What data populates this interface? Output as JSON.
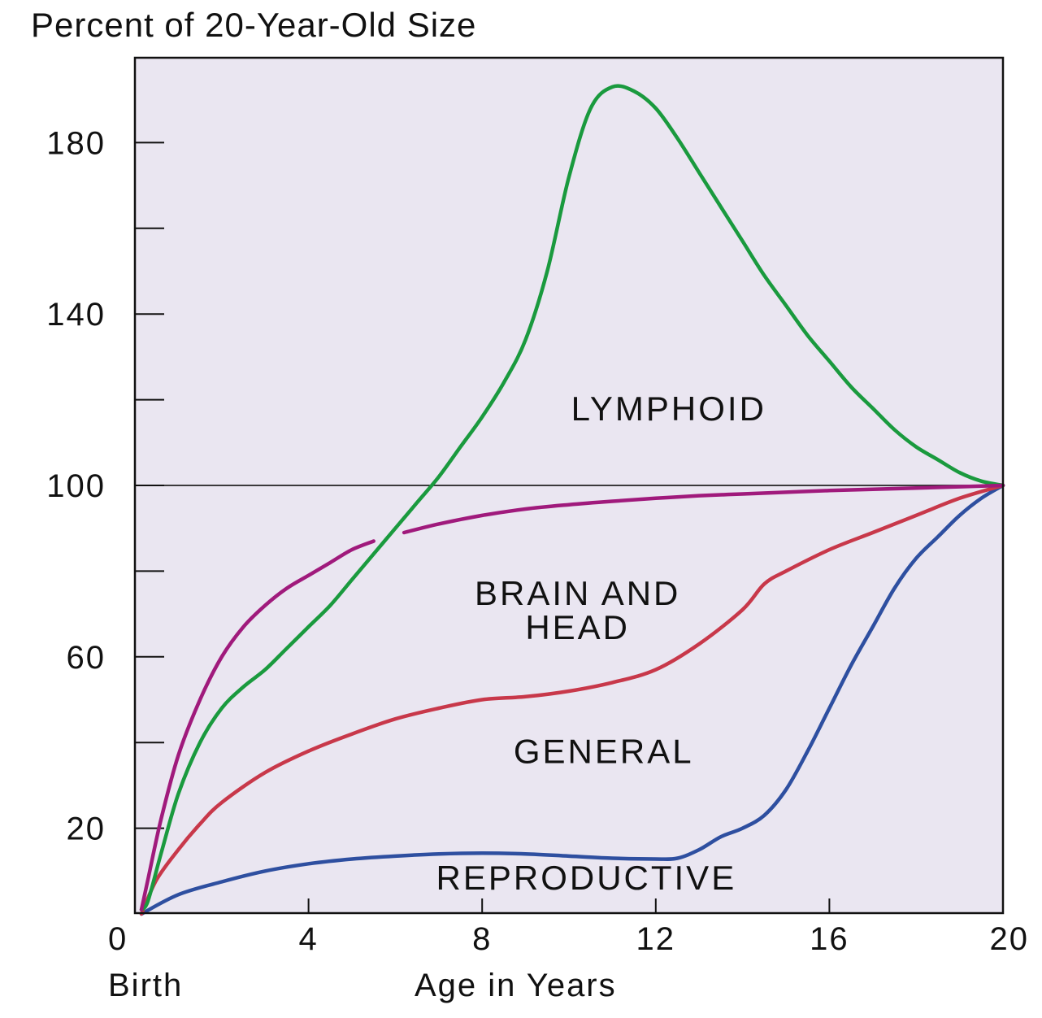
{
  "chart_data": {
    "type": "line",
    "title": "Percent of 20-Year-Old Size",
    "ylabel": "Percent of 20-Year-Old Size",
    "xlabel": "Age in Years",
    "x_origin_label": "Birth",
    "xlim": [
      0,
      20
    ],
    "ylim": [
      0,
      200
    ],
    "x_ticks": [
      0,
      4,
      8,
      12,
      16,
      20
    ],
    "x_tick_labels": [
      "0",
      "4",
      "8",
      "12",
      "16",
      "20"
    ],
    "y_ticks_labeled": [
      20,
      60,
      100,
      140,
      180
    ],
    "y_tick_labels": [
      "20",
      "60",
      "100",
      "140",
      "180"
    ],
    "y_ticks_minor": [
      40,
      80,
      120,
      160
    ],
    "reference_line_y": 100,
    "grid": false,
    "legend": "none (series labeled directly inside plot)",
    "series": [
      {
        "name": "LYMPHOID",
        "color": "#1a9a3e",
        "x": [
          0.15,
          0.3,
          0.6,
          1,
          1.5,
          2,
          2.5,
          3,
          3.5,
          4,
          4.5,
          5,
          5.5,
          6,
          6.5,
          7,
          7.5,
          8,
          8.5,
          9,
          9.5,
          10,
          10.5,
          11,
          11.5,
          12,
          12.5,
          13,
          13.5,
          14,
          14.5,
          15,
          15.5,
          16,
          16.5,
          17,
          17.5,
          18,
          18.5,
          19,
          19.5,
          20
        ],
        "y": [
          1,
          3,
          14,
          28,
          40,
          48,
          53,
          57,
          62,
          67,
          72,
          78,
          84,
          90,
          96,
          102,
          109,
          116,
          124,
          134,
          150,
          172,
          188,
          193,
          192,
          188,
          181,
          173,
          165,
          157,
          149,
          142,
          135,
          129,
          123,
          118,
          113,
          109,
          106,
          103,
          101,
          100
        ]
      },
      {
        "name": "BRAIN AND HEAD",
        "color": "#a01a7c",
        "segments": [
          {
            "x": [
              0.15,
              0.3,
              0.6,
              1,
              1.5,
              2,
              2.5,
              3,
              3.5,
              4,
              4.5,
              5,
              5.5
            ],
            "y": [
              1,
              8,
              22,
              37,
              50,
              60,
              67,
              72,
              76,
              79,
              82,
              85,
              87
            ]
          },
          {
            "x": [
              6.2,
              7,
              8,
              9,
              10,
              11,
              12,
              13,
              14,
              15,
              16,
              17,
              18,
              19,
              20
            ],
            "y": [
              89,
              91,
              93,
              94.5,
              95.5,
              96.3,
              97,
              97.6,
              98,
              98.4,
              98.8,
              99.1,
              99.4,
              99.7,
              100
            ]
          }
        ]
      },
      {
        "name": "GENERAL",
        "color": "#c8384a",
        "x": [
          0.15,
          0.5,
          1,
          1.5,
          2,
          3,
          4,
          5,
          6,
          7,
          8,
          9,
          10,
          11,
          12,
          13,
          14,
          14.5,
          15,
          16,
          17,
          18,
          19,
          20
        ],
        "y": [
          0,
          8,
          15,
          21,
          26,
          33,
          38,
          42,
          45.5,
          48,
          50,
          50.7,
          52,
          54,
          57,
          63,
          71,
          77,
          80,
          85,
          89,
          93,
          97,
          100
        ]
      },
      {
        "name": "REPRODUCTIVE",
        "color": "#2e4fa0",
        "x": [
          0.15,
          1,
          2,
          3,
          4,
          5,
          6,
          7,
          8,
          9,
          10,
          11,
          12,
          12.5,
          13,
          13.5,
          14,
          14.5,
          15,
          15.5,
          16,
          16.5,
          17,
          17.5,
          18,
          18.5,
          19,
          19.5,
          20
        ],
        "y": [
          0,
          4.5,
          7.5,
          10,
          11.7,
          12.8,
          13.5,
          14,
          14.2,
          14,
          13.5,
          13,
          12.8,
          13,
          15,
          18,
          20,
          23,
          29,
          38,
          48,
          58,
          67,
          76,
          83,
          88,
          93,
          97,
          100
        ]
      }
    ],
    "annotations": [
      {
        "text": "LYMPHOID",
        "x": 12.3,
        "y": 118
      },
      {
        "text": "BRAIN AND",
        "x": 10.2,
        "y": 75
      },
      {
        "text": "HEAD",
        "x": 10.2,
        "y": 67
      },
      {
        "text": "GENERAL",
        "x": 10.8,
        "y": 38
      },
      {
        "text": "REPRODUCTIVE",
        "x": 10.4,
        "y": 8.5
      }
    ],
    "colors": {
      "plot_background": "#eae6f1",
      "axis": "#111111",
      "reference_line": "#222222"
    }
  }
}
